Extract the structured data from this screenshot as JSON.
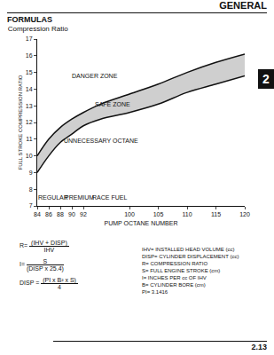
{
  "header": "GENERAL",
  "section": "FORMULAS",
  "tab": "2",
  "page_number": "2.13",
  "chart_data": {
    "type": "line",
    "title": "Compression Ratio",
    "x_label": "PUMP OCTANE NUMBER",
    "y_label": "FULL STROKE COMPRESSION RATIO",
    "x": [
      84,
      86,
      88,
      90,
      92,
      95,
      100,
      105,
      110,
      115,
      120
    ],
    "series": [
      {
        "color": "#111111",
        "values": [
          9.0,
          10.0,
          10.8,
          11.3,
          11.8,
          12.2,
          12.6,
          13.1,
          13.8,
          14.3,
          14.8
        ]
      },
      {
        "color": "#111111",
        "values": [
          10.0,
          11.0,
          11.7,
          12.2,
          12.6,
          13.1,
          13.7,
          14.3,
          15.0,
          15.6,
          16.1
        ]
      }
    ],
    "fill_color": "#cfcfcf",
    "xlim": [
      84,
      120
    ],
    "xticks": [
      84,
      86,
      88,
      90,
      92,
      100,
      105,
      110,
      115,
      120
    ],
    "ylim": [
      7,
      17
    ],
    "yticks": [
      7,
      8,
      9,
      10,
      11,
      12,
      13,
      14,
      15,
      16,
      17
    ],
    "grid": false,
    "annotations": [
      {
        "text": "DANGER ZONE",
        "x": 94,
        "y": 14.8
      },
      {
        "text": "SAFE ZONE",
        "x": 97,
        "y": 13.1
      },
      {
        "text": "UNNECESSARY OCTANE",
        "x": 95,
        "y": 10.9
      },
      {
        "text": "REGULAR",
        "x": 86.8,
        "y": 7.5
      },
      {
        "text": "PREMIUM",
        "x": 91.3,
        "y": 7.5
      },
      {
        "text": "RACE FUEL",
        "x": 96.5,
        "y": 7.5
      }
    ]
  },
  "formulas": [
    {
      "left": "R=",
      "numerator": "(IHV + DISP)",
      "denominator": "IHV"
    },
    {
      "left": "I=",
      "numerator": "S",
      "denominator": "(DISP x 25.4)"
    },
    {
      "left": "DISP =",
      "numerator": "(PI x B² x S)",
      "denominator": "4"
    }
  ],
  "definitions": [
    "IHV= INSTALLED HEAD VOLUME (cc)",
    "DISP= CYLINDER DISPLACEMENT (cc)",
    "R= COMPRESSION RATIO",
    "S= FULL ENGINE STROKE (cm)",
    "I= INCHES PER cc OF IHV",
    "B= CYLINDER BORE (cm)",
    "PI= 3.1416"
  ]
}
